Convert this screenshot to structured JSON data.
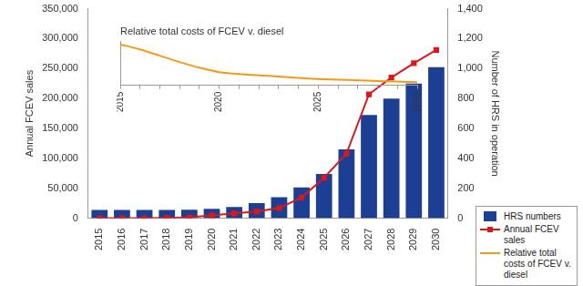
{
  "chart_data": [
    {
      "type": "bar",
      "categories": [
        "2015",
        "2016",
        "2017",
        "2018",
        "2019",
        "2020",
        "2021",
        "2022",
        "2023",
        "2024",
        "2025",
        "2026",
        "2027",
        "2028",
        "2029",
        "2030"
      ],
      "series": [
        {
          "name": "HRS numbers",
          "type": "bar",
          "color": "#1c3f94",
          "axis": "y2",
          "values": [
            55,
            55,
            55,
            55,
            57,
            62,
            75,
            100,
            140,
            205,
            295,
            460,
            690,
            800,
            900,
            1010
          ]
        },
        {
          "name": "Annual FCEV sales",
          "type": "line",
          "color": "#d7191c",
          "marker": "square",
          "line_style": "solid",
          "values": [
            0,
            0,
            0,
            500,
            1500,
            4500,
            8000,
            11000,
            17000,
            34500,
            67500,
            108000,
            207000,
            235000,
            259000,
            281000
          ]
        }
      ],
      "y_label": "Annual FCEV sales",
      "y2_label": "Number of HRS in operation",
      "ylim": [
        0,
        350000
      ],
      "yticks": [
        0,
        {
          "value": 50000,
          "label": "50,000"
        },
        {
          "value": 100000,
          "label": "100,000"
        },
        {
          "value": 150000,
          "label": "150,000"
        },
        {
          "value": 200000,
          "label": "200,000"
        },
        {
          "value": 250000,
          "label": "250,000"
        },
        {
          "value": 300000,
          "label": "300,000"
        },
        {
          "value": 350000,
          "label": "350,000"
        }
      ],
      "y2lim": [
        0,
        1400
      ],
      "y2ticks": [
        0,
        200,
        400,
        600,
        800,
        {
          "value": 1000,
          "label": "1,000"
        },
        {
          "value": 1200,
          "label": "1,200"
        },
        {
          "value": 1400,
          "label": "1,400"
        }
      ],
      "legend": "bottom right",
      "grid": false
    },
    {
      "type": "line",
      "title": "Relative total costs of FCEV v. diesel",
      "categories": [
        "2015",
        null,
        null,
        null,
        null,
        "2020",
        null,
        null,
        null,
        null,
        "2025",
        null,
        null,
        null,
        null,
        "2030"
      ],
      "series": [
        {
          "name": "Relative total costs of FCEV v. diesel",
          "color": "#f39c12",
          "line_style": "solid",
          "values": [
            1.6,
            1.52,
            1.42,
            1.32,
            1.23,
            1.16,
            1.13,
            1.11,
            1.09,
            1.07,
            1.05,
            1.04,
            1.03,
            1.02,
            1.01,
            1.0
          ]
        }
      ],
      "ylim": [
        0.95,
        1.65
      ],
      "tick_labels": "x",
      "grid": false
    }
  ]
}
